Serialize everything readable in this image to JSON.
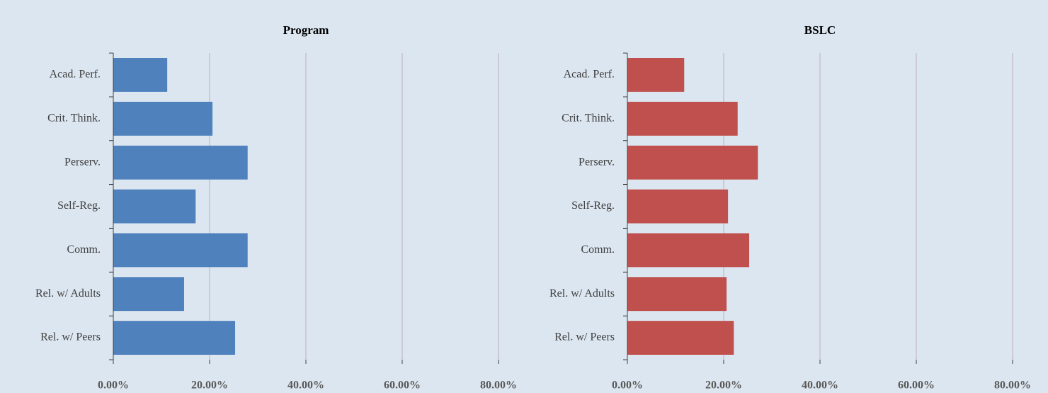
{
  "chart_data": [
    {
      "type": "barh",
      "title": "Program",
      "color": "#4f81bd",
      "categories": [
        "Acad. Perf.",
        "Crit. Think.",
        "Perserv.",
        "Self-Reg.",
        "Comm.",
        "Rel. w/ Adults",
        "Rel. w/ Peers"
      ],
      "values": [
        11.2,
        20.6,
        27.9,
        17.1,
        27.9,
        14.7,
        25.3
      ],
      "xlim": [
        0,
        80
      ],
      "xticks": [
        {
          "value": 0,
          "label": "0.00%"
        },
        {
          "value": 20,
          "label": "20.00%"
        },
        {
          "value": 40,
          "label": "40.00%"
        },
        {
          "value": 60,
          "label": "60.00%"
        },
        {
          "value": 80,
          "label": "80.00%"
        }
      ],
      "grid": true
    },
    {
      "type": "barh",
      "title": "BSLC",
      "color": "#c0504d",
      "categories": [
        "Acad. Perf.",
        "Crit. Think.",
        "Perserv.",
        "Self-Reg.",
        "Comm.",
        "Rel. w/ Adults",
        "Rel. w/ Peers"
      ],
      "values": [
        11.8,
        22.9,
        27.1,
        20.9,
        25.3,
        20.6,
        22.1
      ],
      "xlim": [
        0,
        80
      ],
      "xticks": [
        {
          "value": 0,
          "label": "0.00%"
        },
        {
          "value": 20,
          "label": "20.00%"
        },
        {
          "value": 40,
          "label": "40.00%"
        },
        {
          "value": 60,
          "label": "60.00%"
        },
        {
          "value": 80,
          "label": "80.00%"
        }
      ],
      "grid": true
    }
  ]
}
